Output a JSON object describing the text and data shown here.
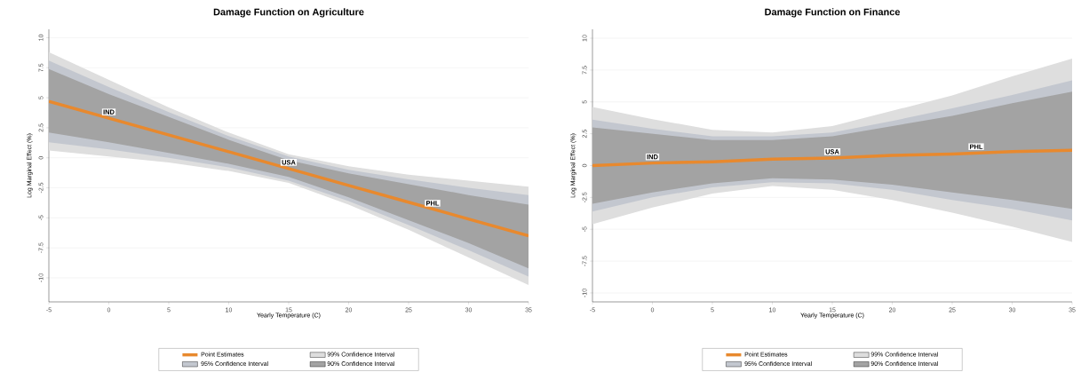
{
  "chart_data": [
    {
      "type": "line",
      "title": "Damage Function on Agriculture",
      "xlabel": "Yearly Temperature (C)",
      "ylabel": "Log Marginal Effect (%)",
      "x": [
        -5,
        0,
        5,
        10,
        15,
        20,
        25,
        30,
        35
      ],
      "series": [
        {
          "name": "99% Confidence Interval",
          "color": "#dedede",
          "values": [
            null,
            null,
            null,
            null,
            null,
            null,
            null,
            null,
            null
          ],
          "upper": [
            8.8,
            6.5,
            4.2,
            2.1,
            0.3,
            -0.7,
            -1.4,
            -1.9,
            -2.4
          ],
          "lower": [
            0.6,
            0.1,
            -0.4,
            -1.1,
            -2.1,
            -3.9,
            -6.0,
            -8.3,
            -10.6
          ]
        },
        {
          "name": "95% Confidence Interval",
          "color": "#c3c7cf",
          "values": [
            null,
            null,
            null,
            null,
            null,
            null,
            null,
            null,
            null
          ],
          "upper": [
            8.1,
            5.9,
            3.8,
            1.8,
            0.1,
            -1.0,
            -1.8,
            -2.5,
            -3.1
          ],
          "lower": [
            1.3,
            0.7,
            0.0,
            -0.8,
            -1.9,
            -3.6,
            -5.6,
            -7.7,
            -9.9
          ]
        },
        {
          "name": "90% Confidence Interval",
          "color": "#a3a3a3",
          "values": [
            null,
            null,
            null,
            null,
            null,
            null,
            null,
            null,
            null
          ],
          "upper": [
            7.4,
            5.3,
            3.4,
            1.5,
            -0.2,
            -1.3,
            -2.2,
            -3.1,
            -3.9
          ],
          "lower": [
            2.1,
            1.3,
            0.4,
            -0.5,
            -1.6,
            -3.3,
            -5.2,
            -7.1,
            -9.2
          ]
        },
        {
          "name": "Point Estimates",
          "color": "#e8892e",
          "values": [
            4.7,
            3.3,
            1.9,
            0.5,
            -0.9,
            -2.3,
            -3.7,
            -5.1,
            -6.5
          ]
        }
      ],
      "xlim": [
        -5,
        35
      ],
      "ylim": [
        -12,
        10.7
      ],
      "xticks": [
        -5,
        0,
        5,
        10,
        15,
        20,
        25,
        30,
        35
      ],
      "yticks": [
        -10,
        -7.5,
        -5,
        -2.5,
        0,
        2.5,
        5,
        7.5,
        10
      ],
      "grid": "y",
      "legend": "bottom",
      "annotations": [
        {
          "text": "IND",
          "x": 0,
          "y": 3.3
        },
        {
          "text": "USA",
          "x": 15,
          "y": -0.9
        },
        {
          "text": "PHL",
          "x": 27,
          "y": -4.3
        }
      ]
    },
    {
      "type": "line",
      "title": "Damage Function on Finance",
      "xlabel": "Yearly Temperature (C)",
      "ylabel": "Log Marginal Effect (%)",
      "x": [
        -5,
        0,
        5,
        10,
        15,
        20,
        25,
        30,
        35
      ],
      "series": [
        {
          "name": "99% Confidence Interval",
          "color": "#dedede",
          "values": [
            null,
            null,
            null,
            null,
            null,
            null,
            null,
            null,
            null
          ],
          "upper": [
            4.6,
            3.65,
            2.8,
            2.6,
            3.1,
            4.3,
            5.5,
            7.0,
            8.4
          ],
          "lower": [
            -4.6,
            -3.3,
            -2.2,
            -1.6,
            -1.9,
            -2.7,
            -3.7,
            -4.8,
            -6.0
          ]
        },
        {
          "name": "95% Confidence Interval",
          "color": "#c3c7cf",
          "values": [
            null,
            null,
            null,
            null,
            null,
            null,
            null,
            null,
            null
          ],
          "upper": [
            3.6,
            2.9,
            2.3,
            2.3,
            2.6,
            3.5,
            4.5,
            5.55,
            6.7
          ],
          "lower": [
            -3.6,
            -2.5,
            -1.7,
            -1.3,
            -1.4,
            -1.9,
            -2.7,
            -3.4,
            -4.3
          ]
        },
        {
          "name": "90% Confidence Interval",
          "color": "#a3a3a3",
          "values": [
            null,
            null,
            null,
            null,
            null,
            null,
            null,
            null,
            null
          ],
          "upper": [
            3.0,
            2.5,
            2.0,
            2.0,
            2.3,
            3.1,
            3.9,
            4.9,
            5.8
          ],
          "lower": [
            -3.0,
            -2.1,
            -1.4,
            -1.0,
            -1.1,
            -1.5,
            -2.1,
            -2.7,
            -3.4
          ]
        },
        {
          "name": "Point Estimates",
          "color": "#e8892e",
          "values": [
            0,
            0.2,
            0.3,
            0.5,
            0.6,
            0.8,
            0.9,
            1.1,
            1.2
          ]
        }
      ],
      "xlim": [
        -5,
        35
      ],
      "ylim": [
        -10.7,
        10.7
      ],
      "xticks": [
        -5,
        0,
        5,
        10,
        15,
        20,
        25,
        30,
        35
      ],
      "yticks": [
        -10,
        -7.5,
        -5,
        -2.5,
        0,
        2.5,
        5,
        7.5,
        10
      ],
      "grid": "y",
      "legend": "bottom",
      "annotations": [
        {
          "text": "IND",
          "x": 0,
          "y": 0.2
        },
        {
          "text": "USA",
          "x": 15,
          "y": 0.6
        },
        {
          "text": "PHL",
          "x": 27,
          "y": 1.0
        }
      ]
    }
  ]
}
